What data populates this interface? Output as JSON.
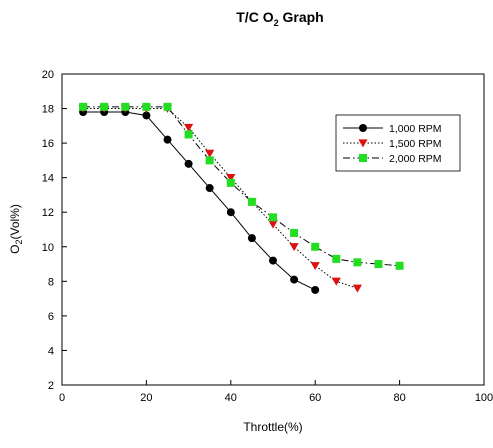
{
  "chart_data": {
    "type": "line",
    "title_parts": {
      "before": "T/C O",
      "sub": "2",
      "after": " Graph"
    },
    "title": "T/C O2 Graph",
    "xlabel": "Throttle(%)",
    "ylabel_parts": {
      "before": "O",
      "sub": "2",
      "after": "(Vol%)"
    },
    "ylabel": "O2(Vol%)",
    "xlim": [
      0,
      100
    ],
    "ylim": [
      2,
      20
    ],
    "xticks": [
      0,
      20,
      40,
      60,
      80,
      100
    ],
    "yticks": [
      2,
      4,
      6,
      8,
      10,
      12,
      14,
      16,
      18,
      20
    ],
    "grid": false,
    "legend_position": "upper-right",
    "series": [
      {
        "name": "1,000 RPM",
        "color": "#000000",
        "marker": "circle",
        "line_style": "solid",
        "x": [
          5,
          10,
          15,
          20,
          25,
          30,
          35,
          40,
          45,
          50,
          55,
          60
        ],
        "y": [
          17.8,
          17.8,
          17.8,
          17.6,
          16.2,
          14.8,
          13.4,
          12.0,
          10.5,
          9.2,
          8.1,
          7.5
        ]
      },
      {
        "name": "1,500 RPM",
        "color": "#dd1111",
        "marker": "triangle-down",
        "line_style": "dotted",
        "x": [
          5,
          10,
          15,
          20,
          25,
          30,
          35,
          40,
          45,
          50,
          55,
          60,
          65,
          70
        ],
        "y": [
          18.0,
          18.0,
          18.0,
          18.0,
          18.0,
          16.9,
          15.4,
          14.0,
          12.6,
          11.3,
          10.0,
          8.9,
          8.0,
          7.6
        ]
      },
      {
        "name": "2,000 RPM",
        "color": "#22dd22",
        "marker": "square",
        "line_style": "dashdot",
        "x": [
          5,
          10,
          15,
          20,
          25,
          30,
          35,
          40,
          45,
          50,
          55,
          60,
          65,
          70,
          75,
          80
        ],
        "y": [
          18.1,
          18.1,
          18.1,
          18.1,
          18.1,
          16.5,
          15.0,
          13.7,
          12.6,
          11.7,
          10.8,
          10.0,
          9.3,
          9.1,
          9.0,
          8.9
        ]
      }
    ]
  }
}
